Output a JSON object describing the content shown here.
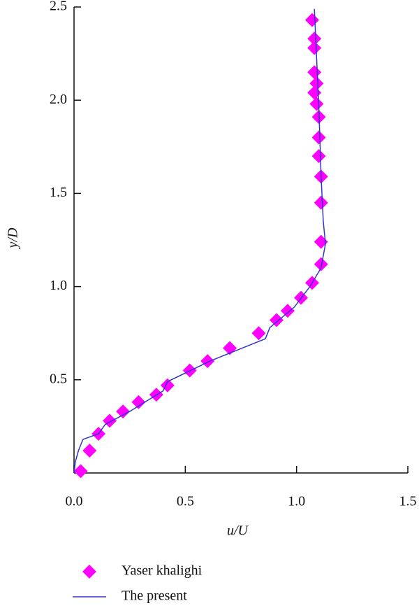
{
  "chart_data": {
    "type": "scatter",
    "xlabel": "u/U",
    "ylabel": "y/D",
    "xlim": [
      0,
      1.5
    ],
    "ylim": [
      0,
      2.5
    ],
    "xticks": [
      {
        "value": 0,
        "label": "0.0"
      },
      0.5,
      {
        "value": 1,
        "label": "1.0"
      },
      1.5
    ],
    "yticks": [
      0.5,
      {
        "value": 1,
        "label": "1.0"
      },
      1.5,
      {
        "value": 2,
        "label": "2.0"
      },
      2.5
    ],
    "series": [
      {
        "name": "Yaser khalighi",
        "type": "scatter",
        "color": "#ff00ff",
        "x": [
          0.03,
          0.07,
          0.11,
          0.16,
          0.22,
          0.29,
          0.37,
          0.42,
          0.52,
          0.6,
          0.7,
          0.83,
          0.91,
          0.96,
          1.02,
          1.07,
          1.11,
          1.11,
          1.11,
          1.11,
          1.1,
          1.1,
          1.1,
          1.09,
          1.08,
          1.09,
          1.08,
          1.08,
          1.08,
          1.07
        ],
        "values": [
          0.01,
          0.12,
          0.21,
          0.28,
          0.33,
          0.38,
          0.42,
          0.47,
          0.55,
          0.6,
          0.67,
          0.75,
          0.82,
          0.87,
          0.94,
          1.02,
          1.12,
          1.24,
          1.45,
          1.59,
          1.7,
          1.8,
          1.91,
          1.98,
          2.04,
          2.09,
          2.15,
          2.28,
          2.33,
          2.43
        ]
      },
      {
        "name": "The present",
        "type": "line",
        "color": "#3333cc",
        "x": [
          0,
          0.006,
          0.02,
          0.04,
          0.11,
          0.14,
          0.25,
          0.4,
          0.42,
          0.61,
          0.86,
          0.88,
          0.99,
          1.06,
          1.11,
          1.13,
          1.12,
          1.11,
          1.1,
          1.09,
          1.08
        ],
        "values": [
          0,
          0.06,
          0.12,
          0.18,
          0.21,
          0.26,
          0.33,
          0.44,
          0.49,
          0.6,
          0.72,
          0.78,
          0.89,
          1.0,
          1.1,
          1.23,
          1.35,
          1.6,
          1.97,
          2.23,
          2.49
        ]
      }
    ]
  }
}
